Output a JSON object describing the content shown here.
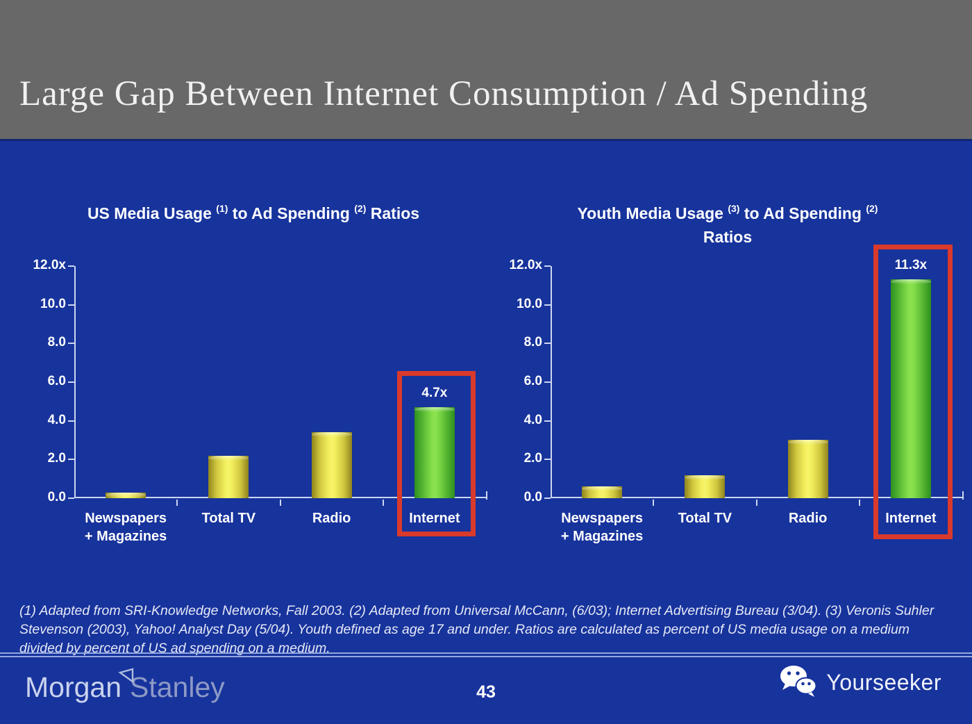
{
  "colors": {
    "header_gray": "#686868",
    "background_blue": "#17339c",
    "axis_light": "#ccd7f2",
    "bar_yellow": "#f2ef5e",
    "bar_yellow_edge": "#8f831c",
    "bar_green": "#8ce24e",
    "bar_green_edge": "#2e8f1f",
    "highlight_red": "#d93a2b",
    "text_white": "#ffffff"
  },
  "slide": {
    "title": "Large Gap Between Internet Consumption / Ad Spending",
    "footnote": "(1) Adapted from SRI-Knowledge Networks, Fall 2003.  (2) Adapted from Universal McCann, (6/03); Internet Advertising Bureau (3/04). (3) Veronis Suhler Stevenson (2003), Yahoo! Analyst Day (5/04).  Youth defined as age 17 and under.  Ratios are calculated as percent of US media usage on a medium divided by percent of US ad spending on a medium.",
    "page_number": "43"
  },
  "footer": {
    "morgan": "Morgan",
    "stanley": "Stanley",
    "yourseeker": "Yourseeker"
  },
  "chart_data": [
    {
      "type": "bar",
      "title": "US Media Usage (1) to Ad Spending (2) Ratios",
      "title_lines": [
        [
          {
            "t": "US Media Usage "
          },
          {
            "sup": "(1)"
          },
          {
            "t": " to Ad Spending "
          },
          {
            "sup": "(2)"
          },
          {
            "t": " Ratios"
          }
        ]
      ],
      "categories": [
        [
          "Newspapers",
          "+ Magazines"
        ],
        [
          "Total TV"
        ],
        [
          "Radio"
        ],
        [
          "Internet"
        ]
      ],
      "values": [
        0.3,
        2.2,
        3.4,
        4.7
      ],
      "bar_colors": [
        "yellow",
        "yellow",
        "yellow",
        "green"
      ],
      "highlight_index": 3,
      "highlight_label": "4.7x",
      "ylim": [
        0,
        12
      ],
      "yticks": [
        "12.0x",
        "10.0",
        "8.0",
        "6.0",
        "4.0",
        "2.0",
        "0.0"
      ],
      "xlabel": "",
      "ylabel": "",
      "grid": false,
      "legend": "none"
    },
    {
      "type": "bar",
      "title": "Youth Media Usage (3) to Ad Spending (2) Ratios",
      "title_lines": [
        [
          {
            "t": "Youth Media Usage "
          },
          {
            "sup": "(3)"
          },
          {
            "t": " to Ad Spending "
          },
          {
            "sup": "(2)"
          }
        ],
        [
          {
            "t": "Ratios"
          }
        ]
      ],
      "categories": [
        [
          "Newspapers",
          "+ Magazines"
        ],
        [
          "Total TV"
        ],
        [
          "Radio"
        ],
        [
          "Internet"
        ]
      ],
      "values": [
        0.6,
        1.2,
        3.0,
        11.3
      ],
      "bar_colors": [
        "yellow",
        "yellow",
        "yellow",
        "green"
      ],
      "highlight_index": 3,
      "highlight_label": "11.3x",
      "ylim": [
        0,
        12
      ],
      "yticks": [
        "12.0x",
        "10.0",
        "8.0",
        "6.0",
        "4.0",
        "2.0",
        "0.0"
      ],
      "xlabel": "",
      "ylabel": "",
      "grid": false,
      "legend": "none"
    }
  ]
}
